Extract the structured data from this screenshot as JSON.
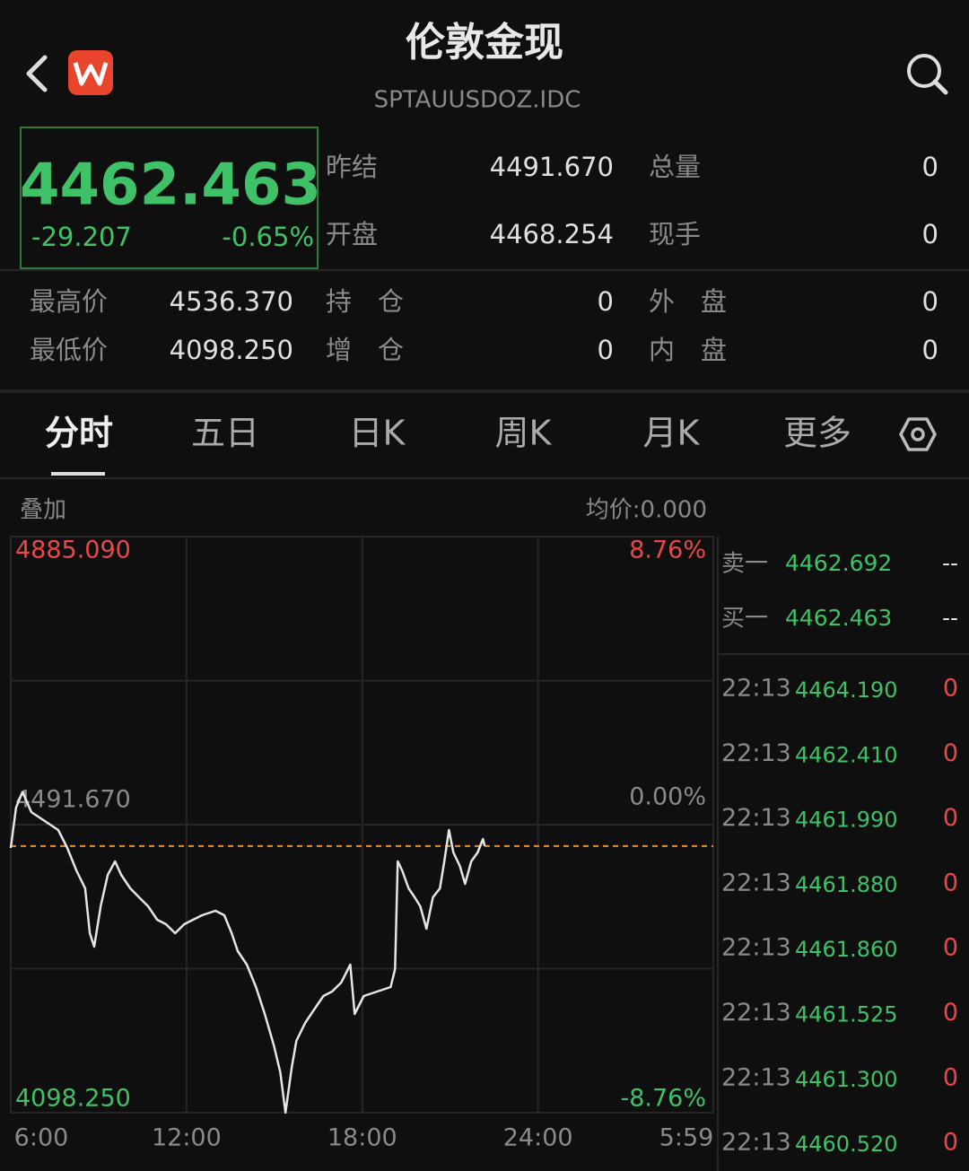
{
  "header": {
    "title": "伦敦金现",
    "code": "SPTAUUSDOZ.IDC"
  },
  "quote": {
    "price": 4462.463,
    "change": -29.207,
    "change_pct": "-0.65%"
  },
  "stats": [
    [
      {
        "label": "昨结",
        "value": "4491.670"
      },
      {
        "label": "总量",
        "value": "0"
      }
    ],
    [
      {
        "label": "开盘",
        "value": "4468.254"
      },
      {
        "label": "现手",
        "value": "0"
      }
    ],
    [
      {
        "label": "最高价",
        "value": "4536.370"
      },
      {
        "label": "持　仓",
        "value": "0"
      },
      {
        "label": "外　盘",
        "value": "0"
      }
    ],
    [
      {
        "label": "最低价",
        "value": "4098.250"
      },
      {
        "label": "增　仓",
        "value": "0"
      },
      {
        "label": "内　盘",
        "value": "0"
      }
    ]
  ],
  "tabs": [
    "分时",
    "五日",
    "日K",
    "周K",
    "月K",
    "更多"
  ],
  "overlay_label": "叠加",
  "avg_price": "均价:0.000",
  "chart_data": {
    "type": "line",
    "xlim": [
      6,
      29.983
    ],
    "xticks": [
      {
        "value": 6,
        "label": "6:00"
      },
      {
        "value": 12,
        "label": "12:00"
      },
      {
        "value": 18,
        "label": "18:00"
      },
      {
        "value": 24,
        "label": "24:00"
      },
      {
        "value": 29.983,
        "label": "5:59"
      }
    ],
    "ylim": [
      4098.25,
      4885.09
    ],
    "yticks": [
      {
        "value": 4098.25,
        "label": "4098.250"
      },
      {
        "value": 4491.67,
        "label": "4491.670"
      },
      {
        "value": 4885.09,
        "label": "4885.090"
      }
    ],
    "y2lim": [
      -8.76,
      8.76
    ],
    "y2ticks": [
      {
        "value": -8.76,
        "label": "-8.76%"
      },
      {
        "value": 0,
        "label": "0.00%"
      },
      {
        "value": 8.76,
        "label": "8.76%"
      }
    ],
    "grid": true,
    "series": [
      {
        "color": "#e6e6e6",
        "x": [
          6.0,
          6.18,
          6.4,
          6.7,
          7.16,
          7.62,
          7.93,
          8.24,
          8.54,
          8.7,
          8.85,
          9.07,
          9.31,
          9.56,
          9.77,
          10.08,
          10.38,
          10.69,
          11.0,
          11.3,
          11.61,
          11.92,
          12.22,
          12.53,
          12.99,
          13.29,
          13.54,
          13.75,
          14.06,
          14.37,
          14.67,
          14.98,
          15.2,
          15.38,
          15.59,
          15.75,
          16.05,
          16.36,
          16.67,
          16.97,
          17.28,
          17.59,
          17.74,
          18.05,
          18.51,
          18.97,
          19.12,
          19.21,
          19.36,
          19.58,
          19.79,
          19.98,
          20.19,
          20.41,
          20.65,
          20.8,
          20.96,
          21.11,
          21.33,
          21.51,
          21.72,
          21.94,
          22.12,
          22.18
        ],
        "values": [
          4459.8,
          4515.0,
          4536.4,
          4508.8,
          4496.6,
          4484.3,
          4459.8,
          4429.2,
          4404.7,
          4343.4,
          4325.0,
          4380.2,
          4423.0,
          4441.4,
          4423.0,
          4404.7,
          4392.4,
          4380.2,
          4361.8,
          4355.6,
          4343.4,
          4355.6,
          4361.8,
          4367.9,
          4374.0,
          4367.9,
          4343.4,
          4318.9,
          4300.5,
          4269.8,
          4233.1,
          4190.2,
          4153.4,
          4098.3,
          4159.5,
          4196.3,
          4220.8,
          4239.2,
          4257.6,
          4263.7,
          4276.0,
          4300.5,
          4233.1,
          4257.6,
          4263.7,
          4269.8,
          4294.4,
          4441.4,
          4429.2,
          4404.7,
          4392.4,
          4380.2,
          4349.5,
          4392.4,
          4404.7,
          4441.4,
          4484.3,
          4453.7,
          4435.3,
          4410.8,
          4441.4,
          4453.7,
          4472.1,
          4462.5
        ]
      }
    ]
  },
  "order_book": [
    {
      "label": "卖一",
      "price": "4462.692",
      "volume": "--"
    },
    {
      "label": "买一",
      "price": "4462.463",
      "volume": "--"
    }
  ],
  "trades": [
    {
      "time": "22:13",
      "price": "4464.190",
      "volume": "0"
    },
    {
      "time": "22:13",
      "price": "4462.410",
      "volume": "0"
    },
    {
      "time": "22:13",
      "price": "4461.990",
      "volume": "0"
    },
    {
      "time": "22:13",
      "price": "4461.880",
      "volume": "0"
    },
    {
      "time": "22:13",
      "price": "4461.860",
      "volume": "0"
    },
    {
      "time": "22:13",
      "price": "4461.525",
      "volume": "0"
    },
    {
      "time": "22:13",
      "price": "4461.300",
      "volume": "0"
    },
    {
      "time": "22:13",
      "price": "4460.520",
      "volume": "0"
    }
  ]
}
